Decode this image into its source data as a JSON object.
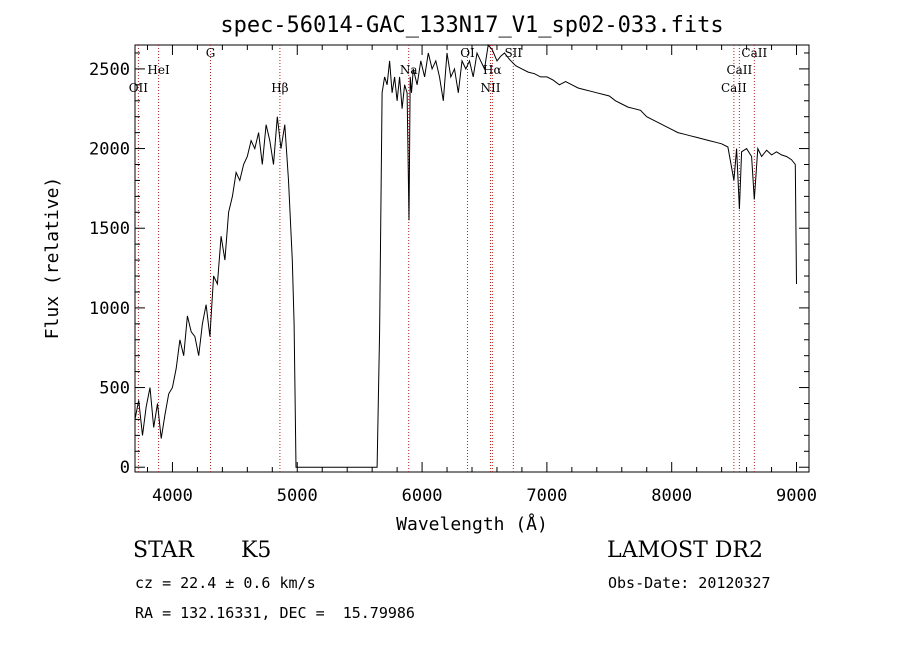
{
  "chart_data": {
    "type": "line",
    "title": "spec-56014-GAC_133N17_V1_sp02-033.fits",
    "xlabel": "Wavelength (Å)",
    "ylabel": "Flux (relative)",
    "xlim": [
      3700,
      9100
    ],
    "ylim": [
      -30,
      2650
    ],
    "x_ticks": [
      4000,
      5000,
      6000,
      7000,
      8000,
      9000
    ],
    "y_ticks": [
      0,
      500,
      1000,
      1500,
      2000,
      2500
    ],
    "grid": false,
    "series": [
      {
        "x": [
          3700,
          3730,
          3760,
          3790,
          3820,
          3850,
          3880,
          3910,
          3940,
          3970,
          4000,
          4030,
          4060,
          4090,
          4120,
          4150,
          4180,
          4210,
          4240,
          4270,
          4300,
          4330,
          4360,
          4390,
          4420,
          4450,
          4480,
          4510,
          4540,
          4570,
          4600,
          4630,
          4660,
          4690,
          4720,
          4750,
          4780,
          4810,
          4840,
          4870,
          4900,
          4930,
          4960,
          4975,
          4990,
          5010,
          5100,
          5300,
          5500,
          5640,
          5660,
          5680,
          5700,
          5720,
          5740,
          5760,
          5780,
          5800,
          5820,
          5840,
          5860,
          5880,
          5895,
          5905,
          5915,
          5930,
          5960,
          5990,
          6020,
          6050,
          6080,
          6110,
          6140,
          6170,
          6200,
          6230,
          6260,
          6290,
          6320,
          6350,
          6380,
          6410,
          6440,
          6470,
          6500,
          6530,
          6563,
          6600,
          6630,
          6660,
          6700,
          6750,
          6800,
          6850,
          6900,
          6950,
          7000,
          7050,
          7100,
          7150,
          7200,
          7250,
          7300,
          7350,
          7400,
          7450,
          7500,
          7550,
          7600,
          7650,
          7700,
          7750,
          7800,
          7850,
          7900,
          7950,
          8000,
          8050,
          8100,
          8150,
          8200,
          8250,
          8300,
          8350,
          8400,
          8450,
          8498,
          8520,
          8542,
          8560,
          8600,
          8640,
          8662,
          8690,
          8720,
          8760,
          8800,
          8840,
          8880,
          8920,
          8960,
          8990,
          9000
        ],
        "values": [
          300,
          420,
          200,
          380,
          500,
          250,
          400,
          180,
          330,
          460,
          500,
          620,
          800,
          700,
          950,
          850,
          820,
          700,
          900,
          1020,
          820,
          1200,
          1150,
          1450,
          1300,
          1600,
          1700,
          1850,
          1800,
          1900,
          1950,
          2050,
          2000,
          2100,
          1900,
          2150,
          2050,
          1900,
          2200,
          2000,
          2150,
          1800,
          1300,
          900,
          0,
          0,
          0,
          0,
          0,
          0,
          850,
          2350,
          2450,
          2400,
          2550,
          2350,
          2450,
          2300,
          2450,
          2250,
          2400,
          2350,
          1550,
          2450,
          2350,
          2500,
          2400,
          2550,
          2450,
          2600,
          2500,
          2550,
          2450,
          2300,
          2600,
          2450,
          2500,
          2350,
          2550,
          2500,
          2550,
          2450,
          2600,
          2550,
          2500,
          2650,
          2620,
          2550,
          2580,
          2600,
          2560,
          2520,
          2500,
          2480,
          2470,
          2450,
          2450,
          2430,
          2400,
          2420,
          2400,
          2380,
          2370,
          2360,
          2350,
          2340,
          2330,
          2300,
          2280,
          2260,
          2250,
          2240,
          2200,
          2180,
          2160,
          2140,
          2120,
          2100,
          2090,
          2080,
          2070,
          2060,
          2050,
          2040,
          2030,
          2010,
          1800,
          2000,
          1620,
          1980,
          2000,
          1950,
          1680,
          2000,
          1950,
          1990,
          1960,
          1980,
          1960,
          1950,
          1930,
          1900,
          1150
        ]
      }
    ],
    "lines": [
      {
        "name": "OII",
        "wavelength": 3727
      },
      {
        "name": "HeI",
        "wavelength": 3889
      },
      {
        "name": "G",
        "wavelength": 4305
      },
      {
        "name": "Hβ",
        "wavelength": 4861
      },
      {
        "name": "Na",
        "wavelength": 5893
      },
      {
        "name": "OI",
        "wavelength": 6364
      },
      {
        "name": "NII",
        "wavelength": 6548
      },
      {
        "name": "Hα",
        "wavelength": 6563
      },
      {
        "name": "SII",
        "wavelength": 6731
      },
      {
        "name": "CaII",
        "wavelength": 8498
      },
      {
        "name": "CaII",
        "wavelength": 8542
      },
      {
        "name": "CaII",
        "wavelength": 8662
      }
    ]
  },
  "info": {
    "object_class": "STAR",
    "subclass": "K5",
    "survey": "LAMOST DR2",
    "cz": "cz = 22.4 ± 0.6 km/s",
    "obs_date": "Obs-Date: 20120327",
    "coords": "RA = 132.16331, DEC =  15.79986"
  }
}
